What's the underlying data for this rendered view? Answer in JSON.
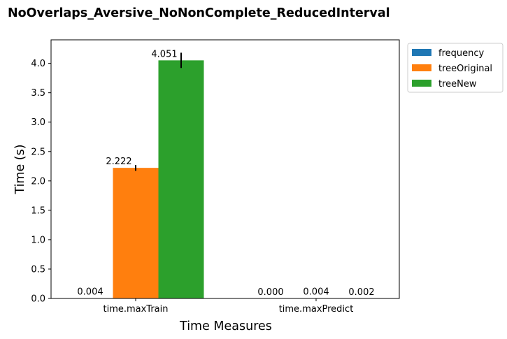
{
  "chart_data": {
    "type": "bar",
    "title": "NoOverlaps_Aversive_NoNonComplete_ReducedInterval",
    "xlabel": "Time Measures",
    "ylabel": "Time (s)",
    "categories": [
      "time.maxTrain",
      "time.maxPredict"
    ],
    "series": [
      {
        "name": "frequency",
        "color": "#1f77b4",
        "values": [
          0.004,
          0.0
        ],
        "errors": [
          0.0,
          0.0
        ],
        "labels": [
          "0.004",
          "0.000"
        ]
      },
      {
        "name": "treeOriginal",
        "color": "#ff7f0e",
        "values": [
          2.222,
          0.004
        ],
        "errors": [
          0.05,
          0.0
        ],
        "labels": [
          "2.222",
          "0.004"
        ]
      },
      {
        "name": "treeNew",
        "color": "#2ca02c",
        "values": [
          4.051,
          0.002
        ],
        "errors": [
          0.13,
          0.0
        ],
        "labels": [
          "4.051",
          "0.002"
        ]
      }
    ],
    "ylim": [
      0,
      4.4
    ],
    "yticks": [
      0.0,
      0.5,
      1.0,
      1.5,
      2.0,
      2.5,
      3.0,
      3.5,
      4.0
    ],
    "ytick_labels": [
      "0.0",
      "0.5",
      "1.0",
      "1.5",
      "2.0",
      "2.5",
      "3.0",
      "3.5",
      "4.0"
    ],
    "grid": false,
    "legend": "outside-top-right"
  }
}
